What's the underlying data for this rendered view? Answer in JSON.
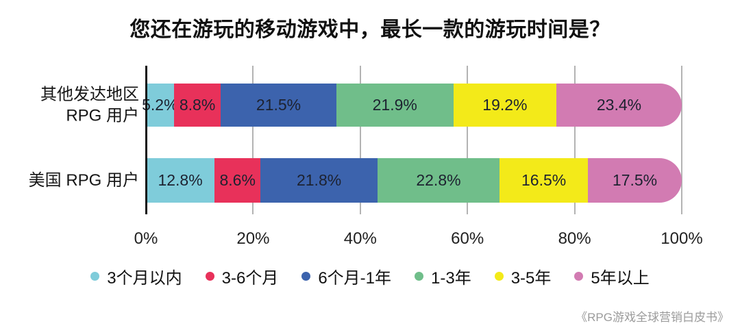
{
  "title": "您还在游玩的移动游戏中，最长一款的游玩时间是？",
  "source": "《RPG游戏全球营销白皮书》",
  "chart_data": {
    "type": "bar",
    "stacked": true,
    "orientation": "horizontal",
    "title": "您还在游玩的移动游戏中，最长一款的游玩时间是？",
    "categories": [
      "其他发达地区\nRPG 用户",
      "美国 RPG 用户"
    ],
    "series": [
      {
        "name": "3个月以内",
        "color": "#7FCCDA",
        "values": [
          5.2,
          12.8
        ]
      },
      {
        "name": "3-6个月",
        "color": "#E8315A",
        "values": [
          8.8,
          8.6
        ]
      },
      {
        "name": "6个月-1年",
        "color": "#3C63AD",
        "values": [
          21.5,
          21.8
        ]
      },
      {
        "name": "1-3年",
        "color": "#70BE8A",
        "values": [
          21.9,
          22.8
        ]
      },
      {
        "name": "3-5年",
        "color": "#F3EA19",
        "values": [
          19.2,
          16.5
        ]
      },
      {
        "name": "5年以上",
        "color": "#D27BB2",
        "values": [
          23.4,
          17.5
        ]
      }
    ],
    "x_ticks": [
      "0%",
      "20%",
      "40%",
      "60%",
      "80%",
      "100%"
    ],
    "xlim": [
      0,
      100
    ],
    "value_suffix": "%",
    "grid": true,
    "legend_position": "bottom",
    "axis_color": "#111111",
    "gridline_color": "#b3b3b3",
    "label_text_color": "#1d2230"
  }
}
